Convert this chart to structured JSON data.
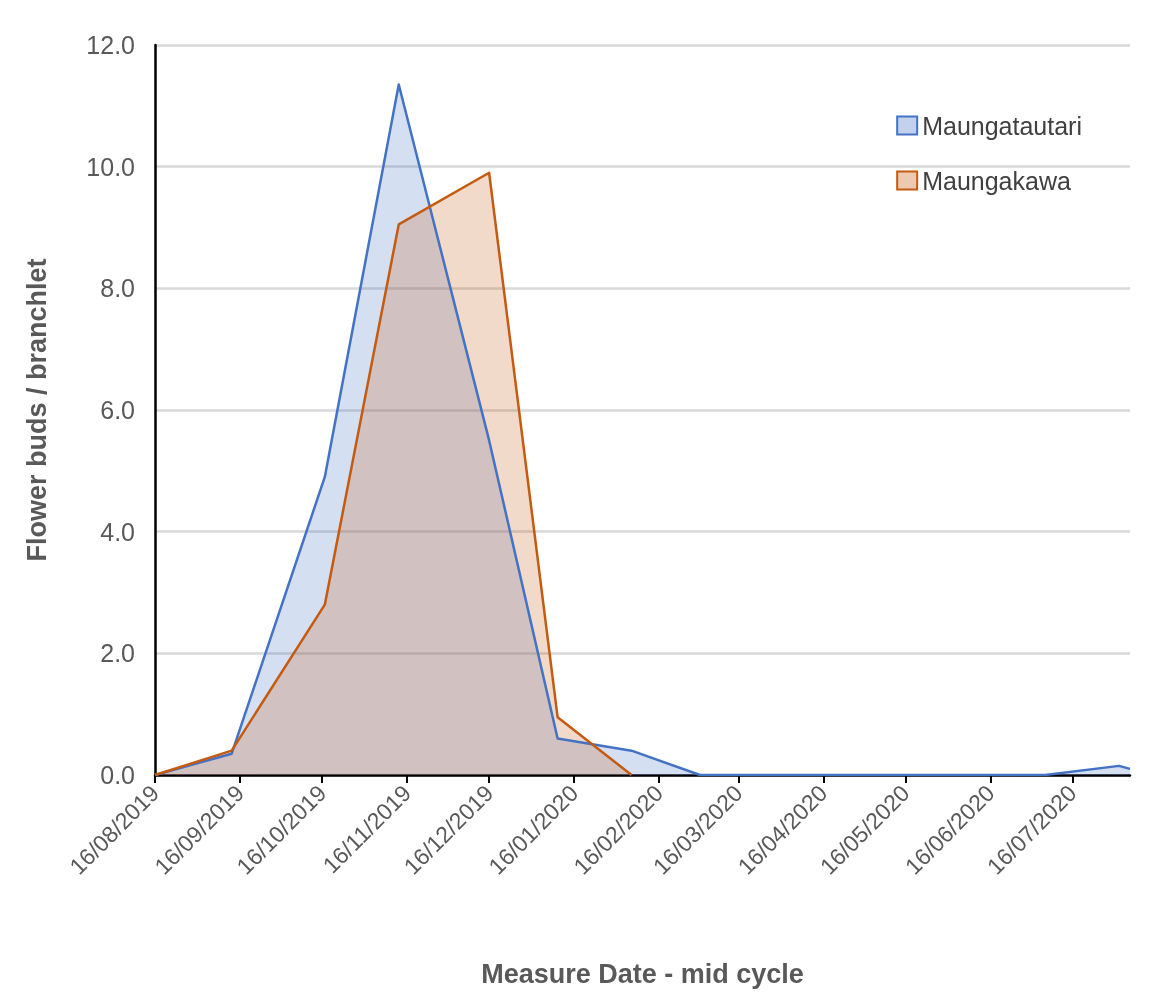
{
  "chart_data": {
    "type": "area",
    "xlabel": "Measure Date - mid cycle",
    "ylabel": "Flower buds / branchlet",
    "xlim": [
      "2019-08-16",
      "2020-08-06"
    ],
    "xticks": [
      {
        "value": "2019-08-16",
        "label": "16/08/2019"
      },
      {
        "value": "2019-09-16",
        "label": "16/09/2019"
      },
      {
        "value": "2019-10-16",
        "label": "16/10/2019"
      },
      {
        "value": "2019-11-16",
        "label": "16/11/2019"
      },
      {
        "value": "2019-12-16",
        "label": "16/12/2019"
      },
      {
        "value": "2020-01-16",
        "label": "16/01/2020"
      },
      {
        "value": "2020-02-16",
        "label": "16/02/2020"
      },
      {
        "value": "2020-03-16",
        "label": "16/03/2020"
      },
      {
        "value": "2020-04-16",
        "label": "16/04/2020"
      },
      {
        "value": "2020-05-16",
        "label": "16/05/2020"
      },
      {
        "value": "2020-06-16",
        "label": "16/06/2020"
      },
      {
        "value": "2020-07-16",
        "label": "16/07/2020"
      }
    ],
    "ylim": [
      0,
      12
    ],
    "yticks": [
      {
        "value": 0,
        "label": "0.0"
      },
      {
        "value": 2,
        "label": "2.0"
      },
      {
        "value": 4,
        "label": "4.0"
      },
      {
        "value": 6,
        "label": "6.0"
      },
      {
        "value": 8,
        "label": "8.0"
      },
      {
        "value": 10,
        "label": "10.0"
      },
      {
        "value": 12,
        "label": "12.0"
      }
    ],
    "grid": "y",
    "legend": "top right",
    "marker": "none",
    "series": [
      {
        "name": "Maungatautari",
        "color": "#4472c4",
        "x": [
          "2019-08-16",
          "2019-09-13",
          "2019-10-17",
          "2019-11-13",
          "2019-12-16",
          "2020-01-10",
          "2020-02-06",
          "2020-03-02",
          "2020-07-06",
          "2020-08-02",
          "2020-08-06"
        ],
        "values": [
          0,
          0.35,
          4.9,
          11.35,
          5.5,
          0.6,
          0.4,
          0,
          0,
          0.15,
          0.1
        ]
      },
      {
        "name": "Maungakawa",
        "color": "#c55a11",
        "x": [
          "2019-08-16",
          "2019-09-13",
          "2019-10-17",
          "2019-11-13",
          "2019-12-16",
          "2020-01-10",
          "2020-02-06"
        ],
        "values": [
          0,
          0.4,
          2.8,
          9.05,
          9.9,
          0.95,
          0
        ]
      }
    ]
  }
}
